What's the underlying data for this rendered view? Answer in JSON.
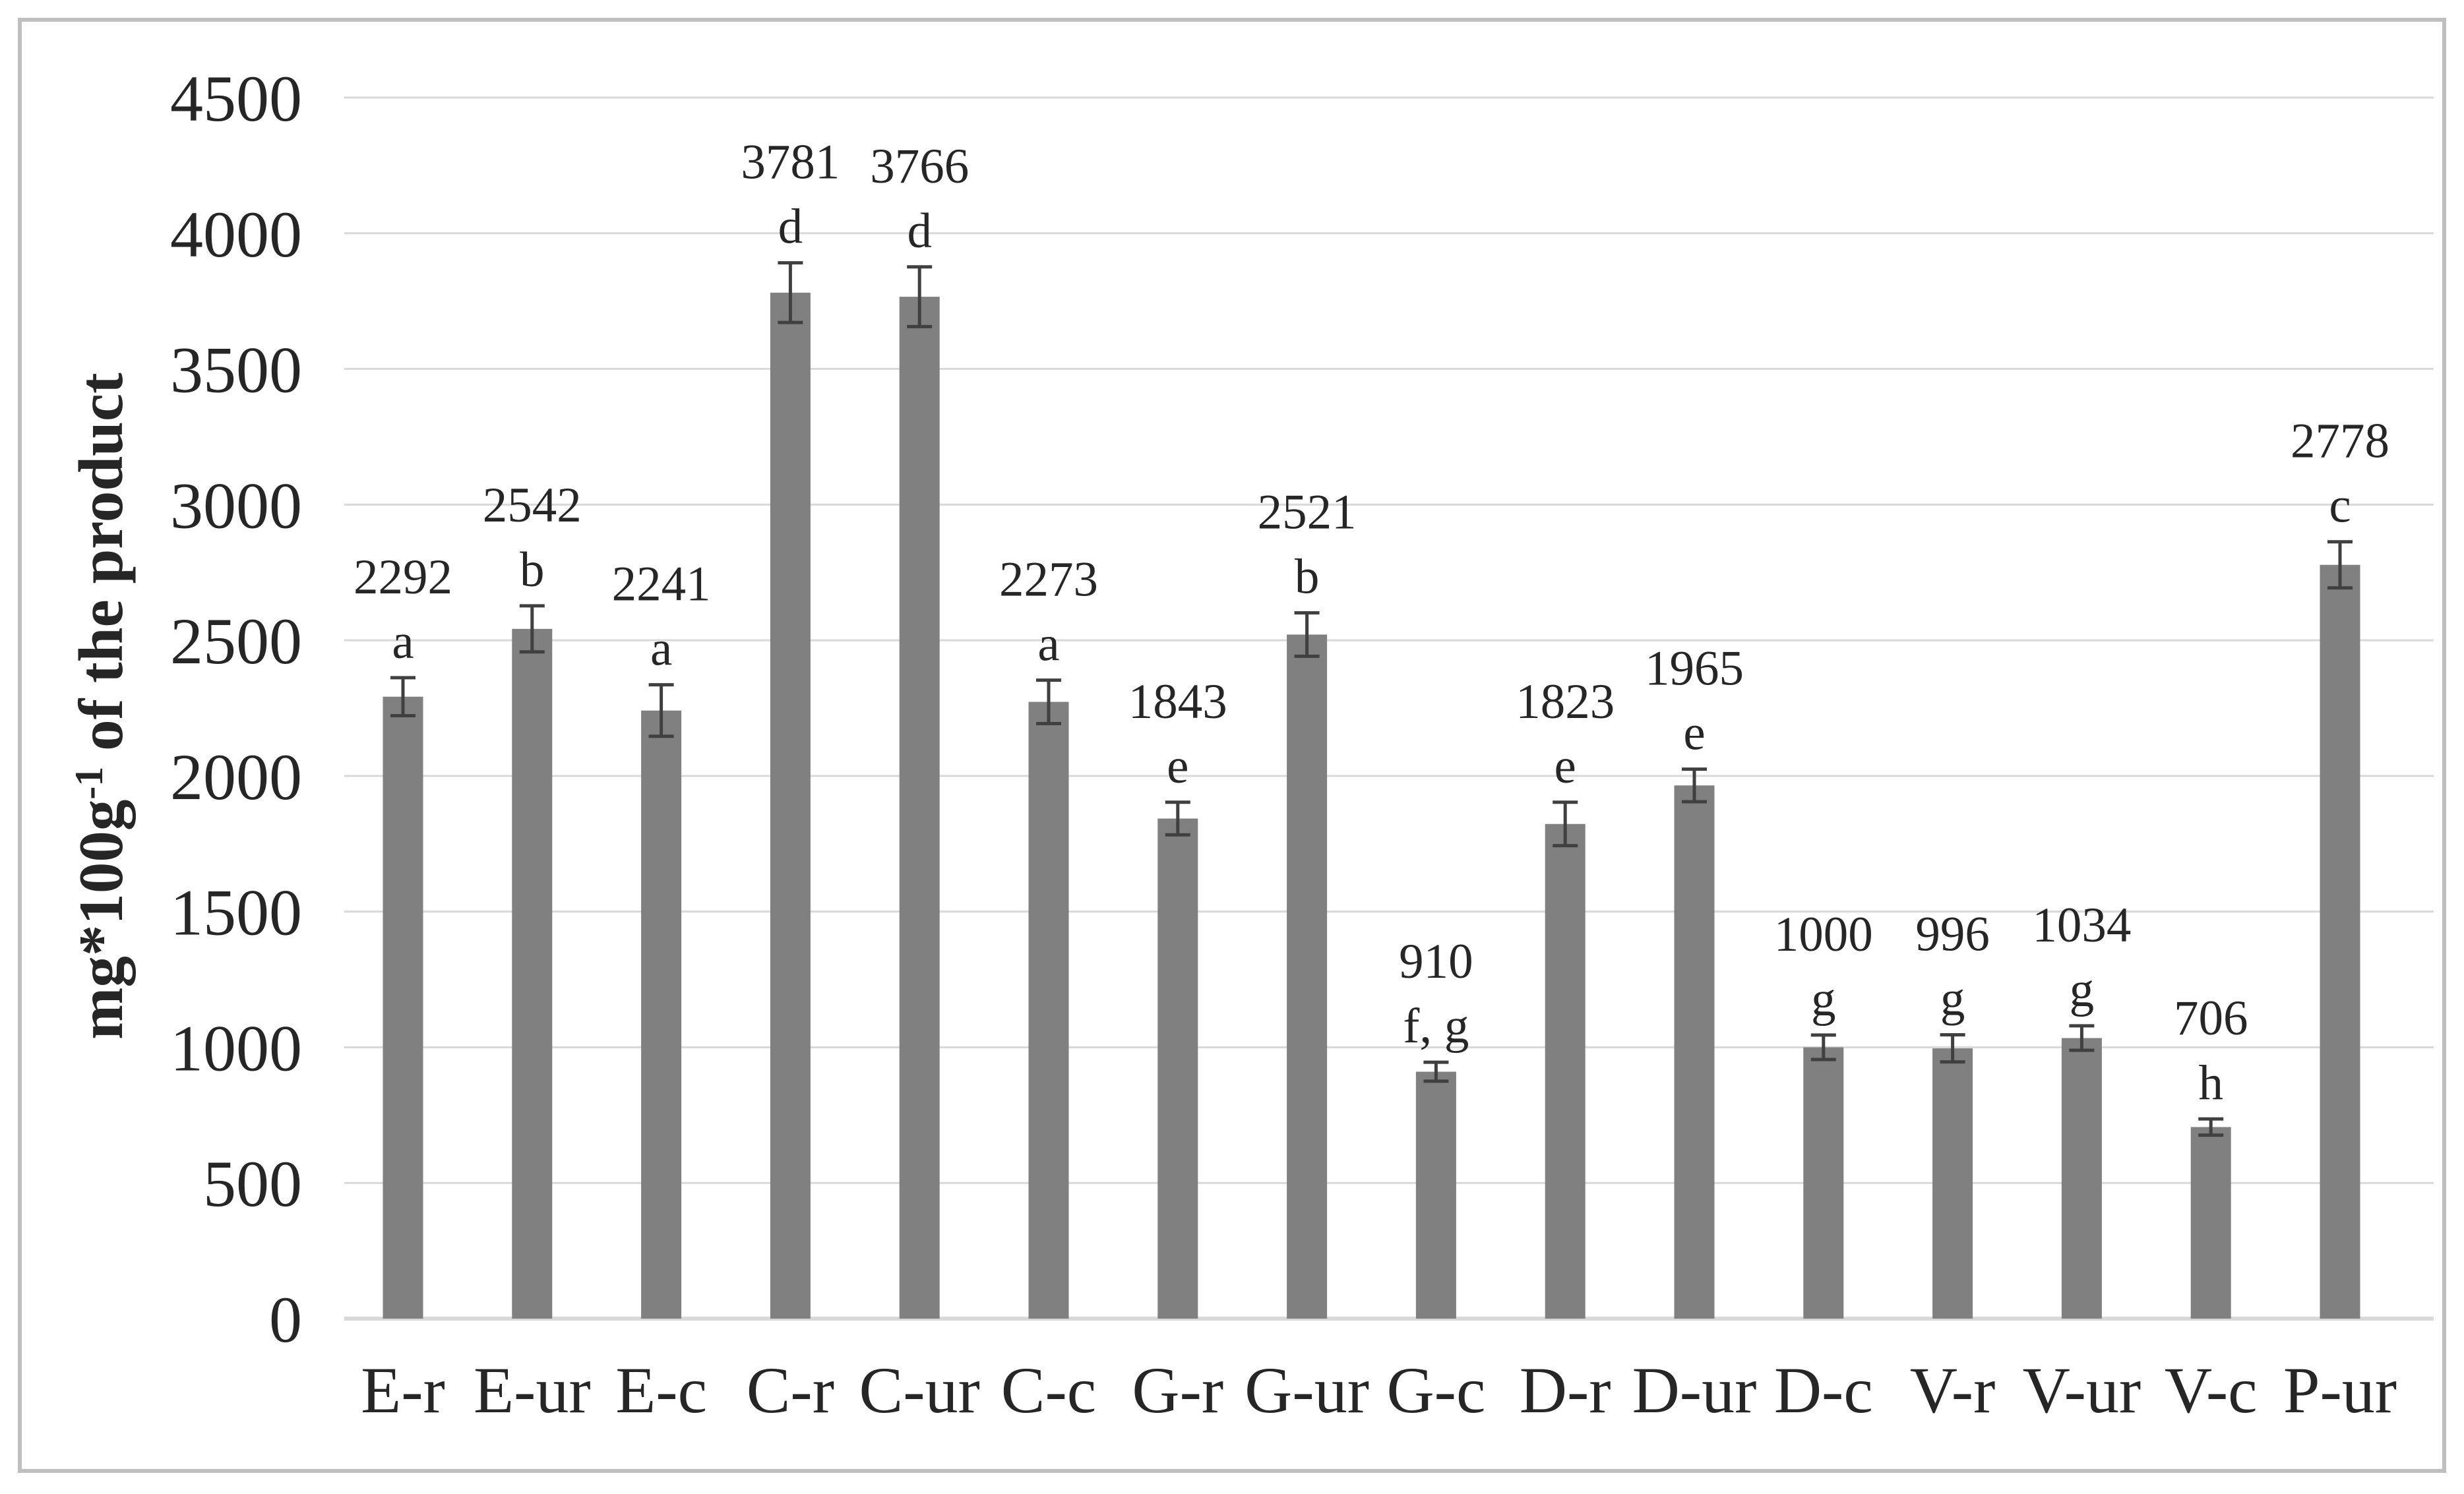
{
  "chart_data": {
    "type": "bar",
    "title": "",
    "xlabel": "",
    "ylabel": "mg*100g-1 of the product",
    "ylabel_parts": {
      "prefix": "mg*100g",
      "superscript": "-1",
      "suffix": " of the product"
    },
    "categories": [
      "E-r",
      "E-ur",
      "E-c",
      "C-r",
      "C-ur",
      "C-c",
      "G-r",
      "G-ur",
      "G-c",
      "D-r",
      "D-ur",
      "D-c",
      "V-r",
      "V-ur",
      "V-c",
      "P-ur"
    ],
    "values": [
      2292,
      2542,
      2241,
      3781,
      3766,
      2273,
      1843,
      2521,
      910,
      1823,
      1965,
      1000,
      996,
      1034,
      706,
      2778
    ],
    "significance_letters": [
      "a",
      "b",
      "a",
      "d",
      "d",
      "a",
      "e",
      "b",
      "f, g",
      "e",
      "e",
      "g",
      "g",
      "g",
      "h",
      "c"
    ],
    "error_bars_estimated": [
      70,
      85,
      95,
      110,
      110,
      80,
      60,
      80,
      35,
      80,
      60,
      45,
      50,
      45,
      30,
      85
    ],
    "ylim": [
      0,
      4500
    ],
    "ytick_interval": 500,
    "ytick_labels": [
      "0",
      "500",
      "1000",
      "1500",
      "2000",
      "2500",
      "3000",
      "3500",
      "4000",
      "4500"
    ],
    "grid": "horizontal",
    "legend": "none",
    "colors": {
      "bar": "#808080",
      "error_bar": "#404040",
      "gridline": "#d9d9d9",
      "axis_line": "#d9d9d9",
      "text": "#262626",
      "border": "#bfbfbf",
      "background": "#ffffff"
    }
  }
}
